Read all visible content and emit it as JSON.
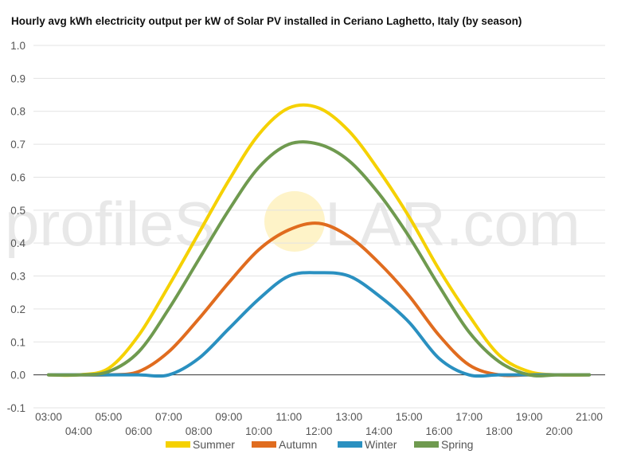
{
  "watermark": {
    "text_left": "profileS",
    "text_right": "LAR.com"
  },
  "chart_data": {
    "type": "line",
    "title": "Hourly avg kWh electricity output per kW of Solar PV installed in Ceriano Laghetto, Italy (by season)",
    "xlabel": "",
    "ylabel": "",
    "ylim": [
      -0.1,
      1.0
    ],
    "yticks": [
      -0.1,
      0.0,
      0.1,
      0.2,
      0.3,
      0.4,
      0.5,
      0.6,
      0.7,
      0.8,
      0.9,
      1.0
    ],
    "ytick_labels": [
      "-0.1",
      "0.0",
      "0.1",
      "0.2",
      "0.3",
      "0.4",
      "0.5",
      "0.6",
      "0.7",
      "0.8",
      "0.9",
      "1.0"
    ],
    "x": [
      "03:00",
      "04:00",
      "05:00",
      "06:00",
      "07:00",
      "08:00",
      "09:00",
      "10:00",
      "11:00",
      "12:00",
      "13:00",
      "14:00",
      "15:00",
      "16:00",
      "17:00",
      "18:00",
      "19:00",
      "20:00",
      "21:00"
    ],
    "grid": true,
    "legend": "bottom",
    "series": [
      {
        "name": "Summer",
        "color": "#f5d100",
        "values": [
          0.0,
          0.0,
          0.02,
          0.12,
          0.27,
          0.43,
          0.59,
          0.73,
          0.81,
          0.81,
          0.74,
          0.62,
          0.48,
          0.32,
          0.18,
          0.06,
          0.01,
          0.0,
          0.0
        ]
      },
      {
        "name": "Autumn",
        "color": "#e06c1f",
        "values": [
          0.0,
          0.0,
          0.0,
          0.01,
          0.07,
          0.17,
          0.28,
          0.38,
          0.44,
          0.46,
          0.42,
          0.34,
          0.24,
          0.12,
          0.03,
          0.0,
          0.0,
          0.0,
          0.0
        ]
      },
      {
        "name": "Winter",
        "color": "#2a90c0",
        "values": [
          0.0,
          0.0,
          0.0,
          0.0,
          0.0,
          0.05,
          0.14,
          0.23,
          0.3,
          0.31,
          0.3,
          0.24,
          0.16,
          0.05,
          0.0,
          0.0,
          0.0,
          0.0,
          0.0
        ]
      },
      {
        "name": "Spring",
        "color": "#6f9a4f",
        "values": [
          0.0,
          0.0,
          0.01,
          0.07,
          0.2,
          0.35,
          0.5,
          0.63,
          0.7,
          0.7,
          0.65,
          0.55,
          0.42,
          0.27,
          0.13,
          0.04,
          0.0,
          0.0,
          0.0
        ]
      }
    ]
  }
}
